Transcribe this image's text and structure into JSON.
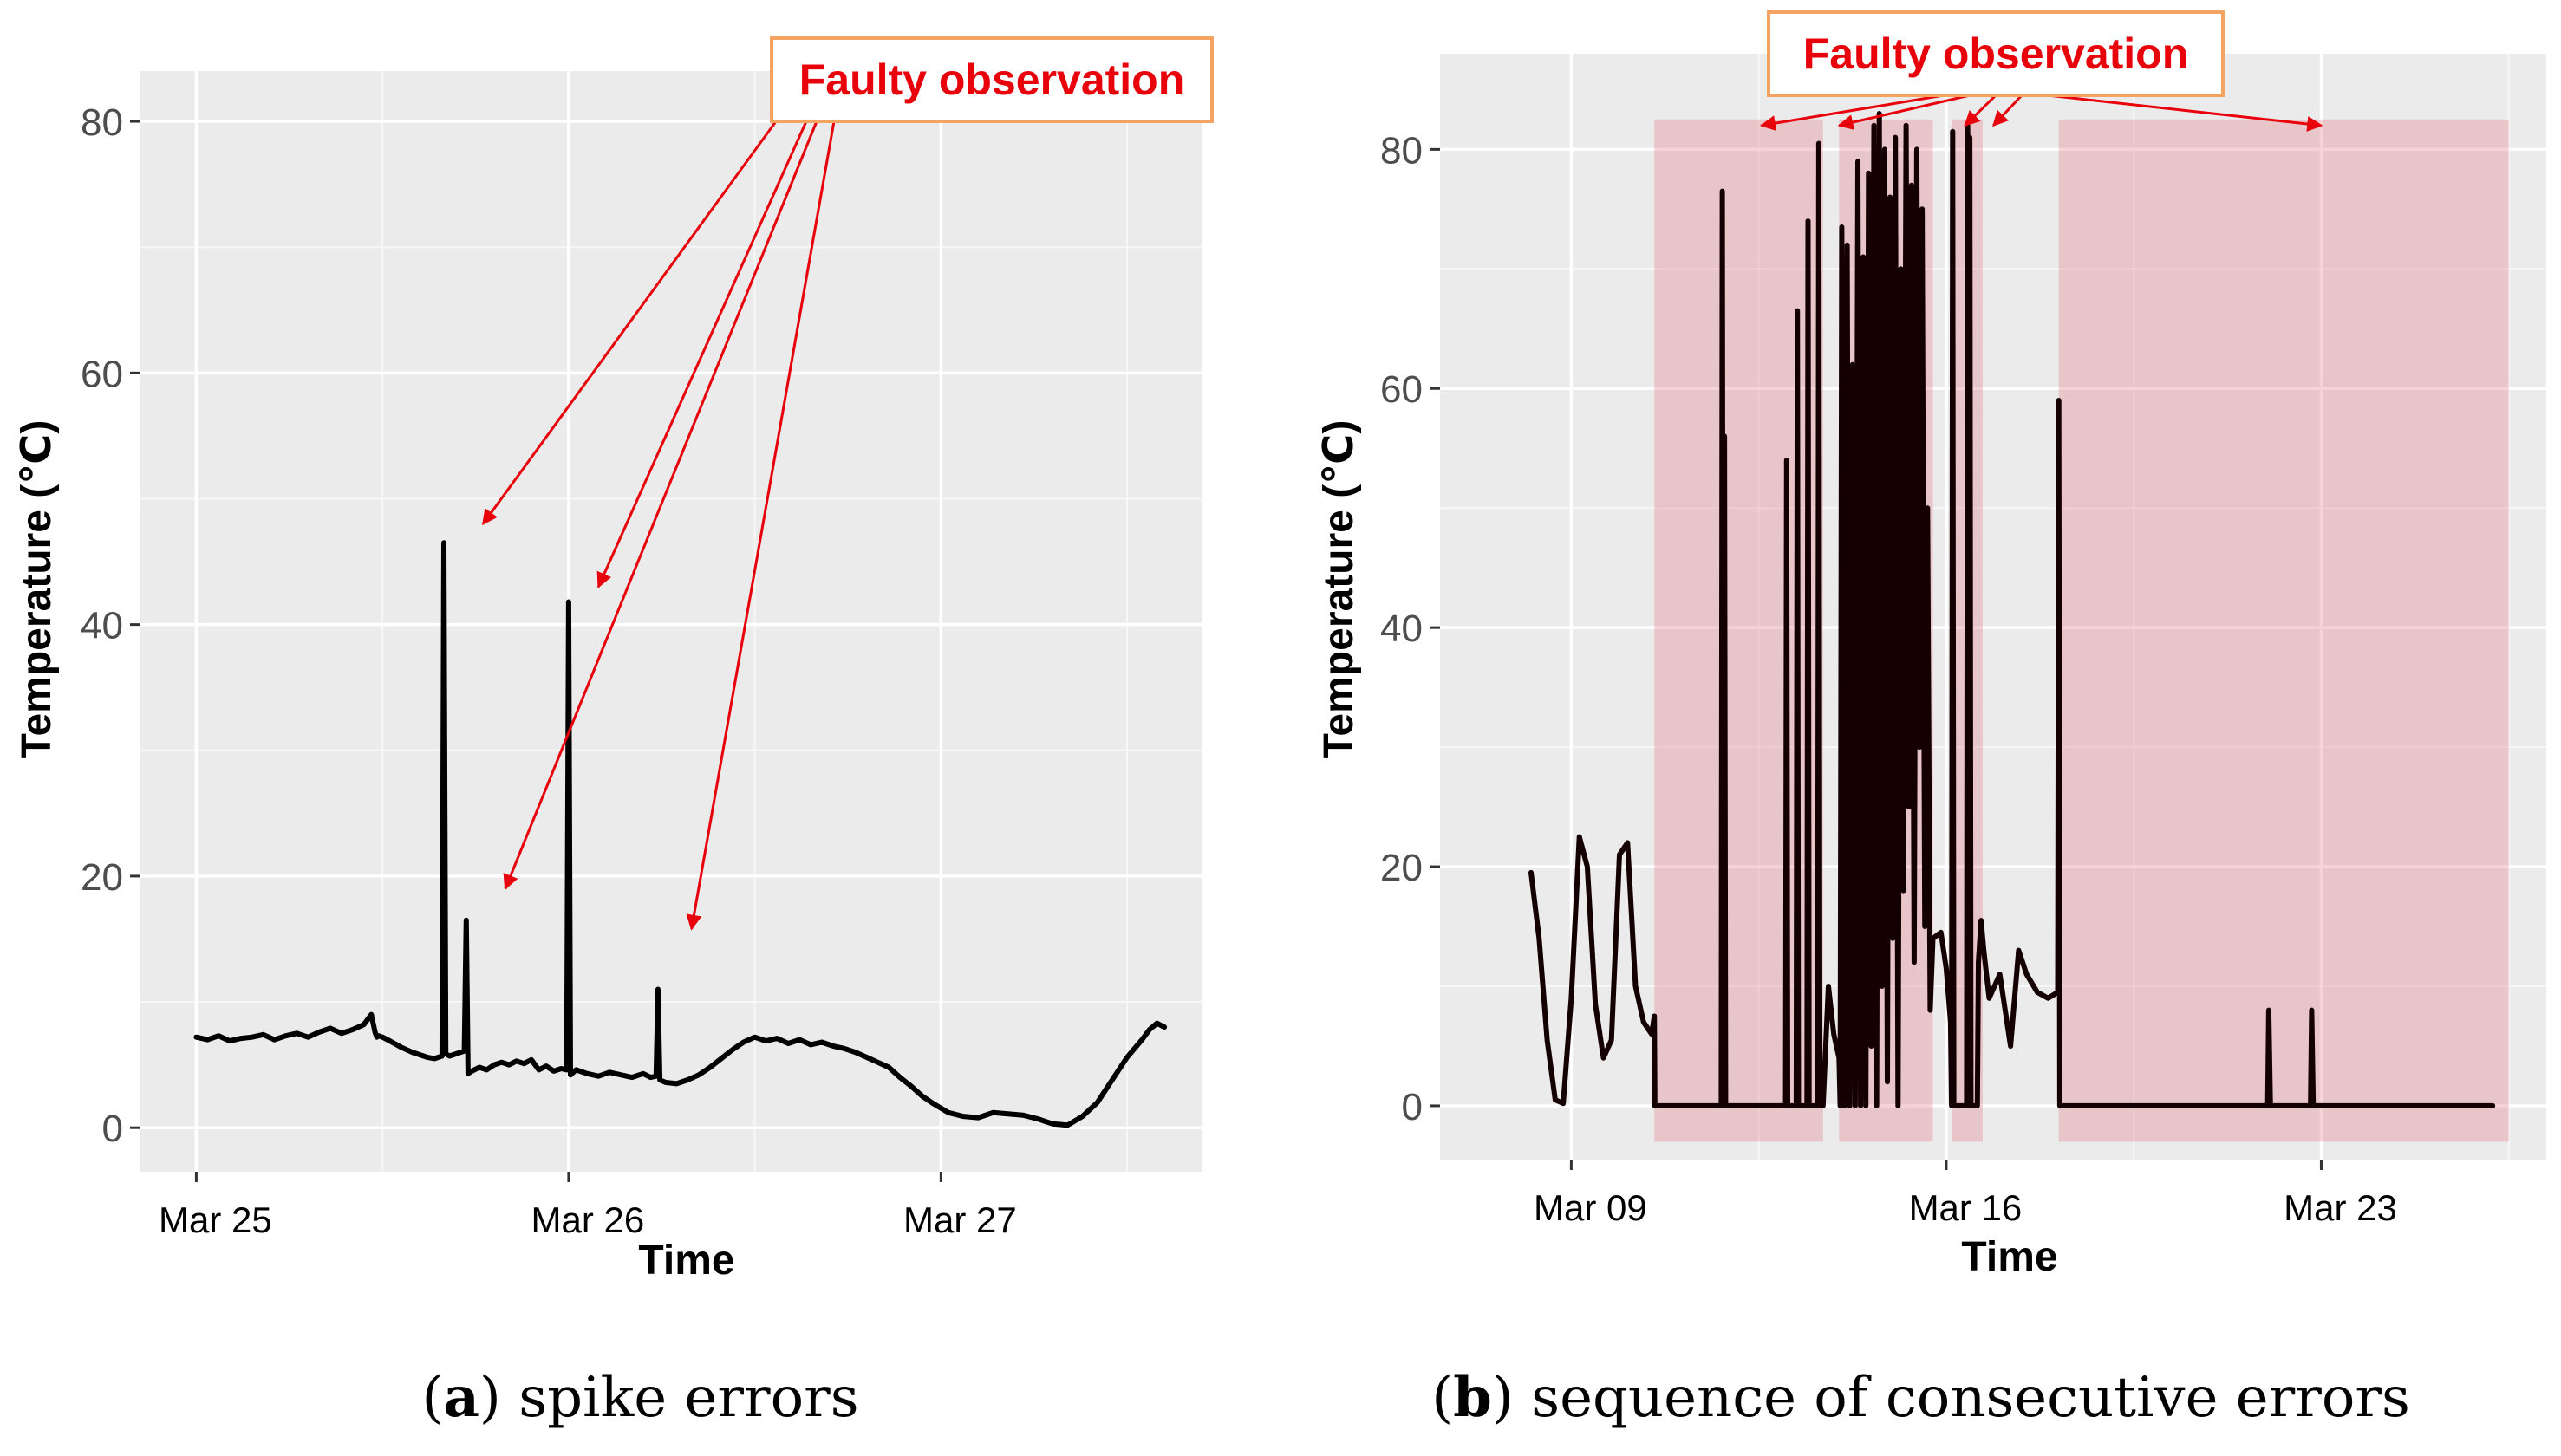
{
  "chart_data": [
    {
      "type": "line",
      "panel_label": "a",
      "caption": "spike errors",
      "xlabel": "Time",
      "ylabel": "Temperature (℃)",
      "x_unit": "days since Mar 25 00:00",
      "xlim": [
        -0.15,
        2.7
      ],
      "ylim": [
        -3.5,
        84
      ],
      "y_ticks": [
        0,
        20,
        40,
        60,
        80
      ],
      "x_ticks": [
        {
          "x": 0,
          "label": "Mar 25"
        },
        {
          "x": 1,
          "label": "Mar 26"
        },
        {
          "x": 2,
          "label": "Mar 27"
        }
      ],
      "minor_x_gridlines": [
        0.5,
        1.5,
        2.5
      ],
      "minor_y_gridlines": [
        10,
        30,
        50,
        70
      ],
      "series": [
        {
          "name": "Temperature",
          "color": "#000000",
          "x": [
            0,
            0.03,
            0.06,
            0.09,
            0.12,
            0.15,
            0.18,
            0.21,
            0.24,
            0.27,
            0.3,
            0.33,
            0.36,
            0.39,
            0.42,
            0.45,
            0.47,
            0.48,
            0.485,
            0.49,
            0.5,
            0.52,
            0.55,
            0.58,
            0.6,
            0.62,
            0.64,
            0.66,
            0.665,
            0.67,
            0.68,
            0.7,
            0.72,
            0.725,
            0.73,
            0.74,
            0.76,
            0.78,
            0.8,
            0.82,
            0.84,
            0.86,
            0.88,
            0.9,
            0.92,
            0.94,
            0.96,
            0.98,
            0.995,
            1.0,
            1.005,
            1.02,
            1.05,
            1.08,
            1.11,
            1.14,
            1.17,
            1.2,
            1.22,
            1.235,
            1.24,
            1.245,
            1.26,
            1.29,
            1.32,
            1.35,
            1.38,
            1.41,
            1.44,
            1.47,
            1.5,
            1.53,
            1.56,
            1.59,
            1.62,
            1.65,
            1.68,
            1.71,
            1.74,
            1.77,
            1.8,
            1.83,
            1.86,
            1.89,
            1.92,
            1.95,
            1.98,
            2.02,
            2.06,
            2.1,
            2.14,
            2.18,
            2.22,
            2.26,
            2.3,
            2.34,
            2.38,
            2.42,
            2.46,
            2.5,
            2.54,
            2.56,
            2.58,
            2.6
          ],
          "y": [
            7.2,
            7.0,
            7.3,
            6.9,
            7.1,
            7.2,
            7.4,
            7.0,
            7.3,
            7.5,
            7.2,
            7.6,
            7.9,
            7.5,
            7.8,
            8.2,
            9.0,
            7.6,
            7.2,
            7.3,
            7.2,
            6.9,
            6.4,
            6.0,
            5.8,
            5.6,
            5.5,
            5.7,
            46.5,
            5.9,
            5.7,
            5.9,
            6.1,
            16.5,
            4.3,
            4.5,
            4.8,
            4.6,
            5.0,
            5.2,
            5.0,
            5.3,
            5.1,
            5.4,
            4.6,
            4.9,
            4.5,
            4.7,
            4.6,
            41.8,
            4.2,
            4.6,
            4.3,
            4.1,
            4.4,
            4.2,
            4.0,
            4.3,
            4.0,
            4.1,
            11.0,
            3.8,
            3.6,
            3.5,
            3.8,
            4.2,
            4.8,
            5.5,
            6.2,
            6.8,
            7.2,
            6.9,
            7.1,
            6.7,
            7.0,
            6.6,
            6.8,
            6.5,
            6.3,
            6.0,
            5.6,
            5.2,
            4.8,
            4.0,
            3.3,
            2.5,
            1.9,
            1.2,
            0.9,
            0.8,
            1.2,
            1.1,
            1.0,
            0.7,
            0.3,
            0.2,
            0.9,
            2.0,
            3.8,
            5.6,
            7.0,
            7.8,
            8.3,
            8.0
          ]
        }
      ],
      "annotation": {
        "text": "Faulty observation",
        "box_color": "#f4a460",
        "text_color": "#e8000b",
        "arrow_color": "#e8000b",
        "arrow_targets": [
          {
            "x": 0.77,
            "y": 48.0
          },
          {
            "x": 1.08,
            "y": 43.0
          },
          {
            "x": 0.83,
            "y": 19.0
          },
          {
            "x": 1.33,
            "y": 15.8
          }
        ]
      }
    },
    {
      "type": "line",
      "panel_label": "b",
      "caption": "sequence of consecutive errors",
      "xlabel": "Time",
      "ylabel": "Temperature (℃)",
      "x_unit": "days since Mar 09 00:00",
      "xlim": [
        -2.45,
        18.2
      ],
      "ylim": [
        -4.5,
        88
      ],
      "y_ticks": [
        0,
        20,
        40,
        60,
        80
      ],
      "x_ticks": [
        {
          "x": 0,
          "label": "Mar 09"
        },
        {
          "x": 7,
          "label": "Mar 16"
        },
        {
          "x": 14,
          "label": "Mar 23"
        }
      ],
      "minor_x_gridlines": [
        3.5,
        10.5,
        17.5
      ],
      "minor_y_gridlines": [
        10,
        30,
        50,
        70
      ],
      "shaded_regions": {
        "color": "#e06c7a",
        "opacity": 0.3,
        "y_range": [
          -3,
          82.5
        ],
        "x_ranges": [
          [
            1.55,
            4.7
          ],
          [
            5.0,
            6.75
          ],
          [
            7.1,
            7.68
          ],
          [
            9.1,
            17.5
          ]
        ]
      },
      "series": [
        {
          "name": "Temperature",
          "color": "#140002",
          "x": [
            -0.75,
            -0.6,
            -0.45,
            -0.3,
            -0.15,
            0,
            0.15,
            0.3,
            0.45,
            0.6,
            0.75,
            0.9,
            1.05,
            1.2,
            1.35,
            1.5,
            1.55,
            1.56,
            2.8,
            2.82,
            2.84,
            2.86,
            2.88,
            2.9,
            4.0,
            4.02,
            4.04,
            4.05,
            4.2,
            4.22,
            4.24,
            4.25,
            4.4,
            4.42,
            4.44,
            4.45,
            4.6,
            4.62,
            4.64,
            4.65,
            4.7,
            4.8,
            4.9,
            5.0,
            5.02,
            5.05,
            5.1,
            5.15,
            5.2,
            5.25,
            5.3,
            5.35,
            5.4,
            5.45,
            5.5,
            5.55,
            5.6,
            5.65,
            5.7,
            5.75,
            5.8,
            5.85,
            5.9,
            5.95,
            6.0,
            6.05,
            6.1,
            6.15,
            6.2,
            6.25,
            6.3,
            6.35,
            6.4,
            6.45,
            6.5,
            6.55,
            6.6,
            6.65,
            6.7,
            6.75,
            6.9,
            7.0,
            7.08,
            7.1,
            7.12,
            7.14,
            7.3,
            7.38,
            7.4,
            7.42,
            7.44,
            7.46,
            7.5,
            7.58,
            7.6,
            7.65,
            7.7,
            7.8,
            8.0,
            8.2,
            8.35,
            8.5,
            8.7,
            8.9,
            9.08,
            9.1,
            9.12,
            9.14,
            13.0,
            13.02,
            13.05,
            13.07,
            13.8,
            13.82,
            13.85,
            13.87,
            17.2
          ],
          "y": [
            19.5,
            14.0,
            5.5,
            0.5,
            0.2,
            9.0,
            22.5,
            20.0,
            8.5,
            4.0,
            5.5,
            21.0,
            22.0,
            10.0,
            7.0,
            6.0,
            7.5,
            0.0,
            0.0,
            76.5,
            0.0,
            56.0,
            0.0,
            0.0,
            0.0,
            54.0,
            0.0,
            0.0,
            0.0,
            66.5,
            0.0,
            0.0,
            0.0,
            74.0,
            0.0,
            0.0,
            0.0,
            80.5,
            0.0,
            0.0,
            0.0,
            10.0,
            6.0,
            4.0,
            0.0,
            73.5,
            0.0,
            72.0,
            0.0,
            62.0,
            0.0,
            79.0,
            0.0,
            71.0,
            0.0,
            78.0,
            5.0,
            82.0,
            0.0,
            83.0,
            10.0,
            80.0,
            2.0,
            76.0,
            14.0,
            81.0,
            0.0,
            70.0,
            18.0,
            82.0,
            25.0,
            77.0,
            12.0,
            80.0,
            30.0,
            75.0,
            15.0,
            50.0,
            8.0,
            14.0,
            14.5,
            11.5,
            7.0,
            0.0,
            81.5,
            0.0,
            0.0,
            0.0,
            82.0,
            0.0,
            81.0,
            0.0,
            0.0,
            0.0,
            12.0,
            15.5,
            13.0,
            9.0,
            11.0,
            5.0,
            13.0,
            11.0,
            9.5,
            9.0,
            9.5,
            59.0,
            0.0,
            0.0,
            0.0,
            8.0,
            0.0,
            0.0,
            0.0,
            8.0,
            0.0,
            0.0,
            0.0
          ]
        }
      ],
      "annotation": {
        "text": "Faulty observation",
        "box_color": "#f4a460",
        "text_color": "#e8000b",
        "arrow_color": "#e8000b",
        "arrow_targets": [
          {
            "x": 3.55,
            "y": 82.0
          },
          {
            "x": 5.0,
            "y": 82.0
          },
          {
            "x": 7.35,
            "y": 82.0
          },
          {
            "x": 7.88,
            "y": 82.0
          },
          {
            "x": 14.0,
            "y": 82.0
          }
        ]
      }
    }
  ]
}
